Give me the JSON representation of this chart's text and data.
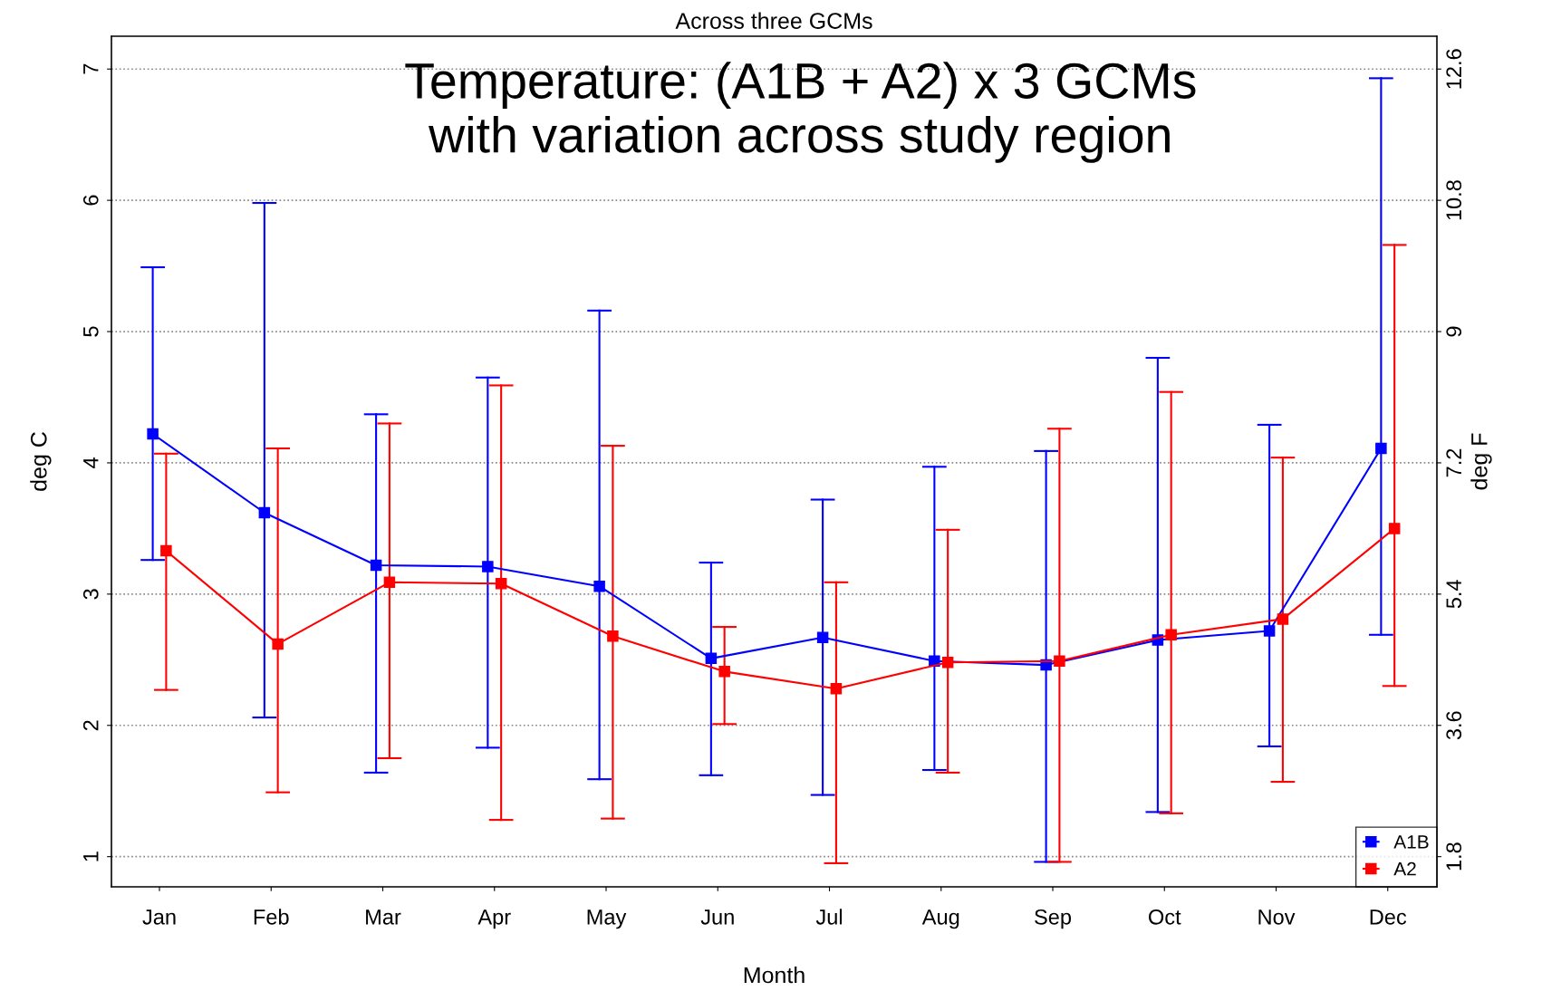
{
  "chart_data": {
    "type": "line",
    "title": "Across three GCMs",
    "xlabel": "Month",
    "ylabel": "deg C",
    "y2label": "deg F",
    "annotations": [
      "Temperature: (A1B + A2) x 3 GCMs\nwith variation across study region"
    ],
    "categories": [
      "Jan",
      "Feb",
      "Mar",
      "Apr",
      "May",
      "Jun",
      "Jul",
      "Aug",
      "Sep",
      "Oct",
      "Nov",
      "Dec"
    ],
    "ylim": [
      0.77,
      7.25
    ],
    "yticks": [
      1,
      2,
      3,
      4,
      5,
      6,
      7
    ],
    "y2lim": [
      1.386,
      13.05
    ],
    "y2ticks": [
      1.8,
      3.6,
      5.4,
      7.2,
      9,
      10.8,
      12.6
    ],
    "grid": "y",
    "legend": "bottom right",
    "marker": "square",
    "line_style": "solid",
    "series": [
      {
        "name": "A1B",
        "color": "#0000ff",
        "values": [
          4.22,
          3.62,
          3.22,
          3.21,
          3.06,
          2.51,
          2.67,
          2.49,
          2.46,
          2.65,
          2.72,
          4.11
        ],
        "errors": [
          [
            3.26,
            5.49
          ],
          [
            2.06,
            5.98
          ],
          [
            1.64,
            4.37
          ],
          [
            1.83,
            4.65
          ],
          [
            1.59,
            5.16
          ],
          [
            1.62,
            3.24
          ],
          [
            1.47,
            3.72
          ],
          [
            1.66,
            3.97
          ],
          [
            0.96,
            4.09
          ],
          [
            1.34,
            4.8
          ],
          [
            1.84,
            4.29
          ],
          [
            2.69,
            6.93
          ]
        ]
      },
      {
        "name": "A2",
        "color": "#ff0000",
        "values": [
          3.33,
          2.62,
          3.09,
          3.08,
          2.68,
          2.41,
          2.28,
          2.48,
          2.49,
          2.69,
          2.81,
          3.5
        ],
        "errors": [
          [
            2.27,
            4.07
          ],
          [
            1.49,
            4.11
          ],
          [
            1.75,
            4.3
          ],
          [
            1.28,
            4.59
          ],
          [
            1.29,
            4.13
          ],
          [
            2.01,
            2.75
          ],
          [
            0.95,
            3.09
          ],
          [
            1.64,
            3.49
          ],
          [
            0.96,
            4.26
          ],
          [
            1.33,
            4.54
          ],
          [
            1.57,
            4.04
          ],
          [
            2.3,
            5.66
          ]
        ]
      }
    ]
  }
}
